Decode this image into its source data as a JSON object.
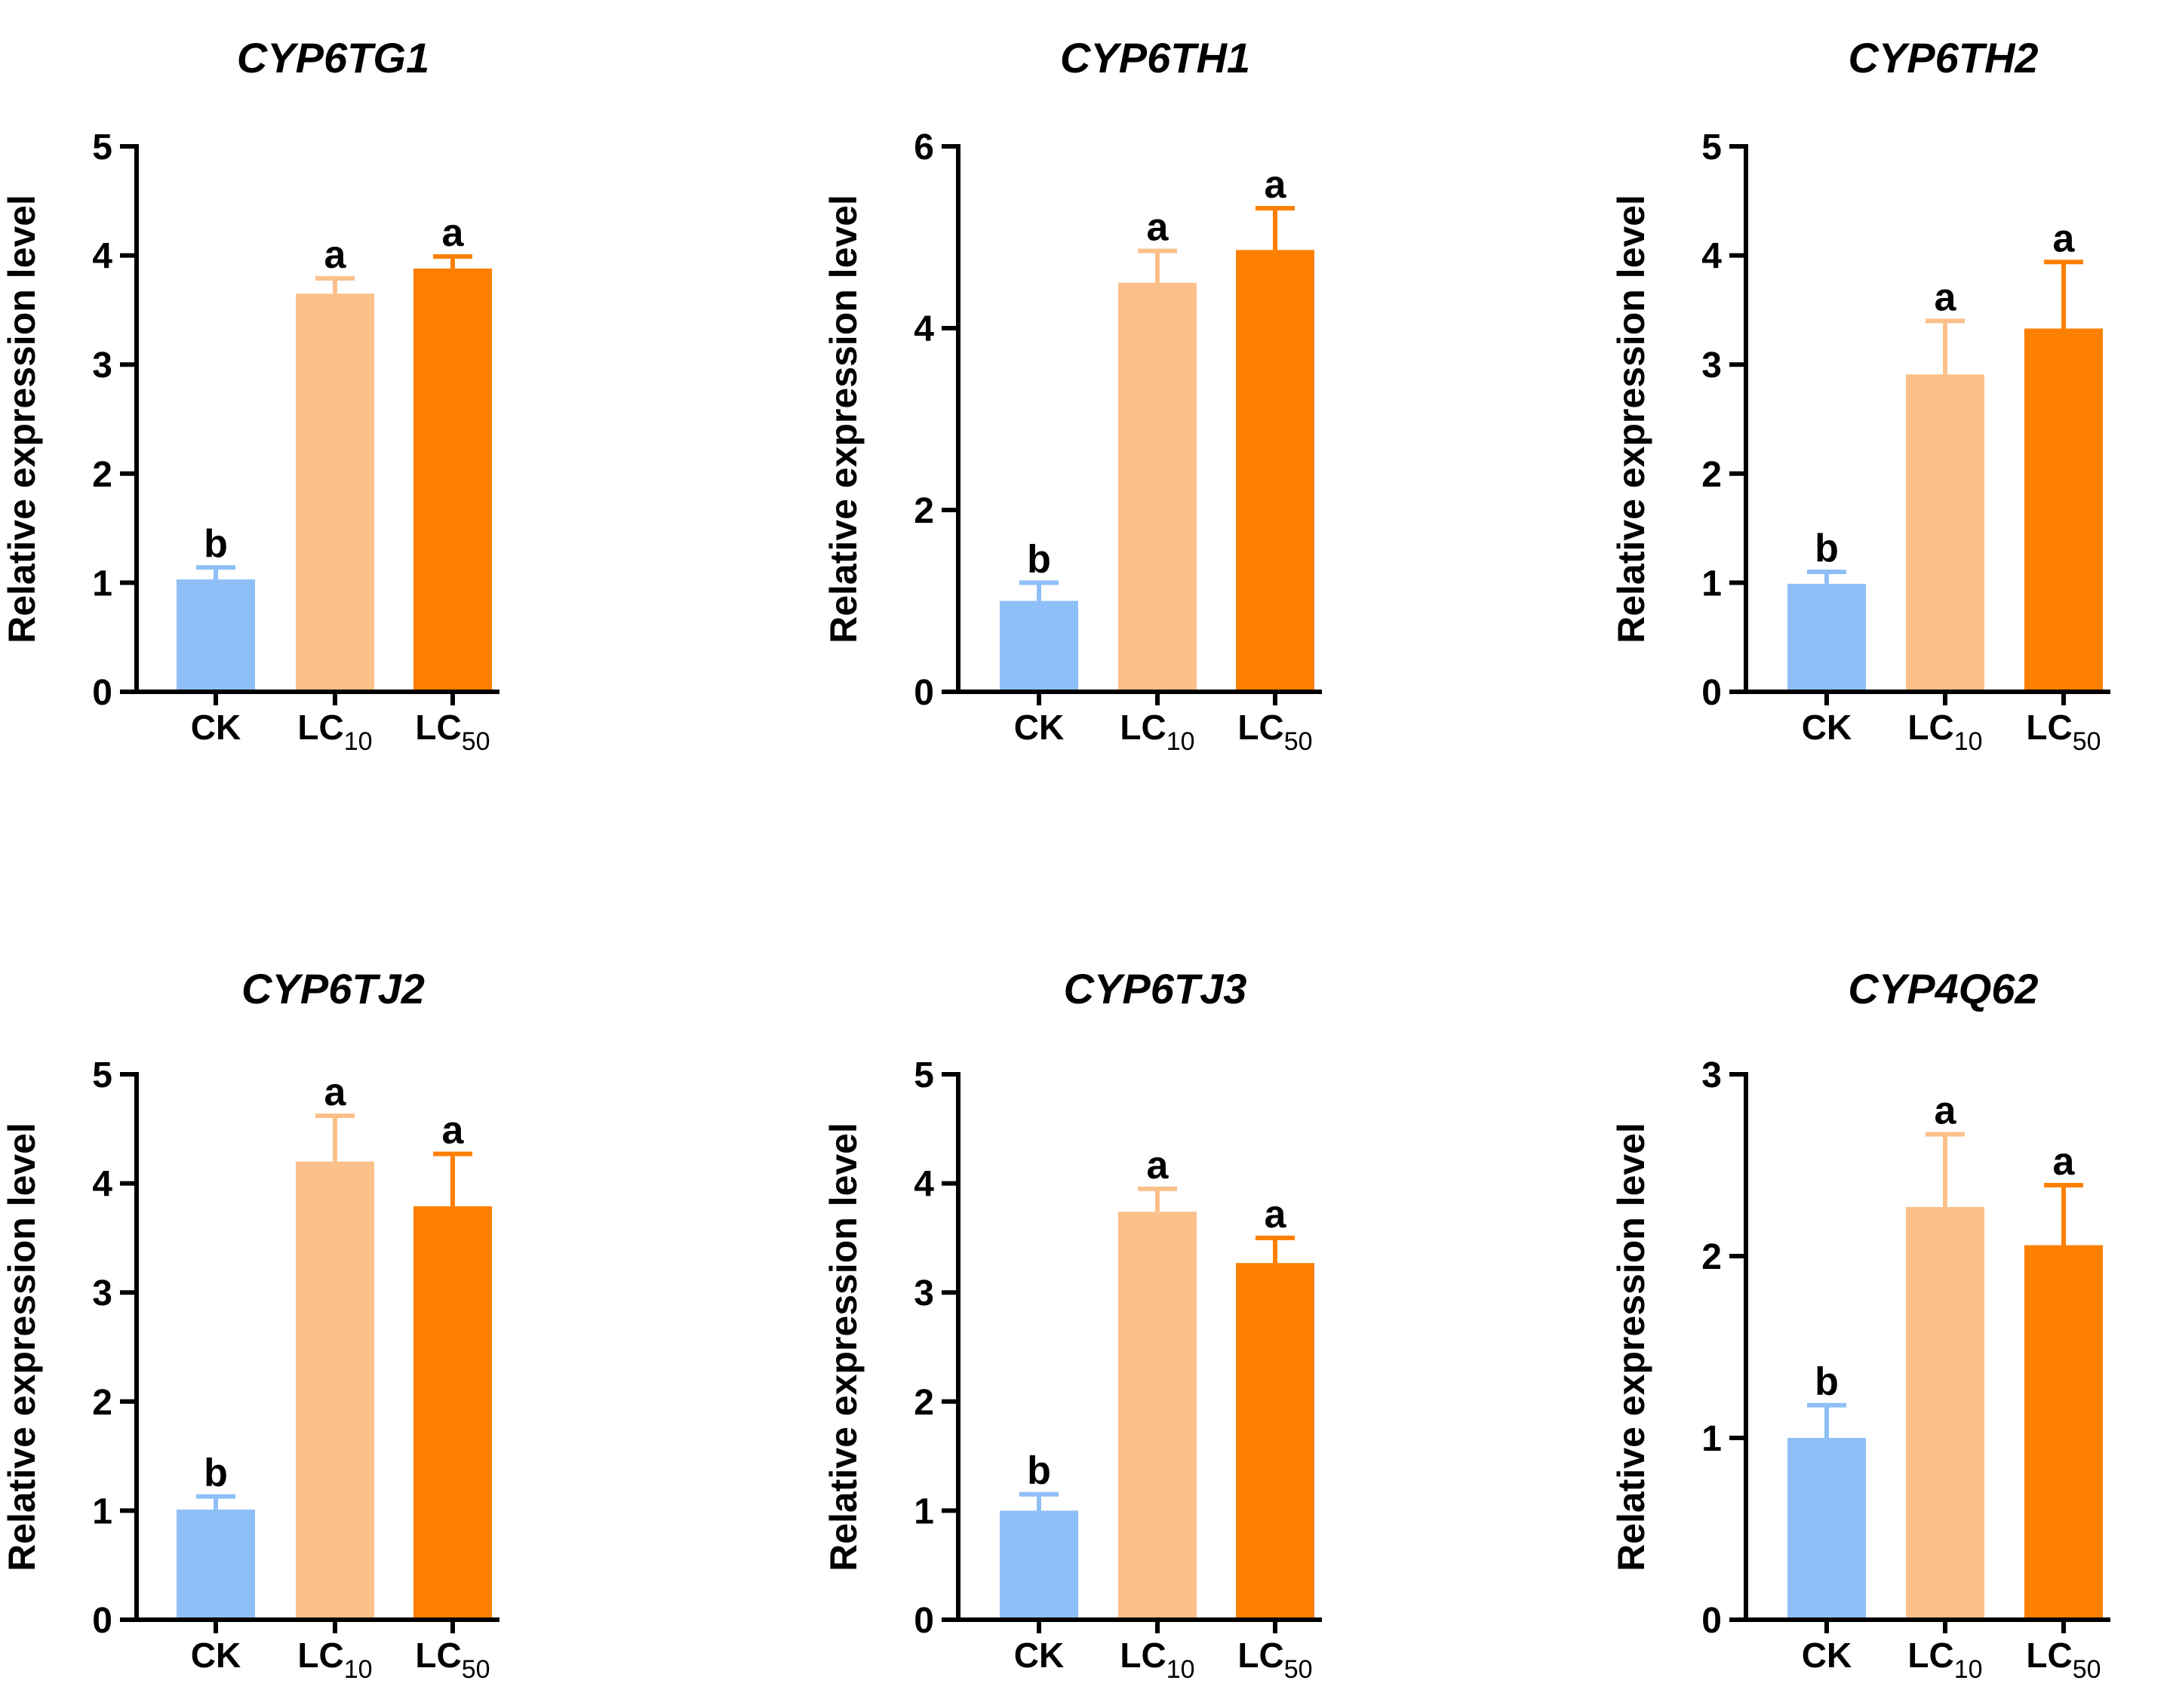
{
  "chart_data": [
    {
      "type": "bar",
      "title": "CYP6TG1",
      "ylabel": "Relative expression level",
      "xlabel": "",
      "categories": [
        "CK",
        "LC10",
        "LC50"
      ],
      "category_parts": [
        {
          "main": "CK",
          "sub": ""
        },
        {
          "main": "LC",
          "sub": "10"
        },
        {
          "main": "LC",
          "sub": "50"
        }
      ],
      "values": [
        1.03,
        3.65,
        3.88
      ],
      "errors": [
        0.11,
        0.14,
        0.11
      ],
      "letters": [
        "b",
        "a",
        "a"
      ],
      "colors": [
        "#8fbff7",
        "#fcc08a",
        "#fd7f00"
      ],
      "ylim": [
        0,
        5
      ],
      "yticks": [
        0,
        1,
        2,
        3,
        4,
        5
      ]
    },
    {
      "type": "bar",
      "title": "CYP6TH1",
      "ylabel": "Relative expression level",
      "xlabel": "",
      "categories": [
        "CK",
        "LC10",
        "LC50"
      ],
      "category_parts": [
        {
          "main": "CK",
          "sub": ""
        },
        {
          "main": "LC",
          "sub": "10"
        },
        {
          "main": "LC",
          "sub": "50"
        }
      ],
      "values": [
        1.0,
        4.5,
        4.86
      ],
      "errors": [
        0.2,
        0.35,
        0.46
      ],
      "letters": [
        "b",
        "a",
        "a"
      ],
      "colors": [
        "#8fbff7",
        "#fcc08a",
        "#fd7f00"
      ],
      "ylim": [
        0,
        6
      ],
      "yticks": [
        0,
        2,
        4,
        6
      ]
    },
    {
      "type": "bar",
      "title": "CYP6TH2",
      "ylabel": "Relative expression level",
      "xlabel": "",
      "categories": [
        "CK",
        "LC10",
        "LC50"
      ],
      "category_parts": [
        {
          "main": "CK",
          "sub": ""
        },
        {
          "main": "LC",
          "sub": "10"
        },
        {
          "main": "LC",
          "sub": "50"
        }
      ],
      "values": [
        0.99,
        2.91,
        3.33
      ],
      "errors": [
        0.11,
        0.49,
        0.61
      ],
      "letters": [
        "b",
        "a",
        "a"
      ],
      "colors": [
        "#8fbff7",
        "#fcc08a",
        "#fd7f00"
      ],
      "ylim": [
        0,
        5
      ],
      "yticks": [
        0,
        1,
        2,
        3,
        4,
        5
      ]
    },
    {
      "type": "bar",
      "title": "CYP6TJ2",
      "ylabel": "Relative expression level",
      "xlabel": "",
      "categories": [
        "CK",
        "LC10",
        "LC50"
      ],
      "category_parts": [
        {
          "main": "CK",
          "sub": ""
        },
        {
          "main": "LC",
          "sub": "10"
        },
        {
          "main": "LC",
          "sub": "50"
        }
      ],
      "values": [
        1.01,
        4.2,
        3.79
      ],
      "errors": [
        0.12,
        0.42,
        0.48
      ],
      "letters": [
        "b",
        "a",
        "a"
      ],
      "colors": [
        "#8fbff7",
        "#fcc08a",
        "#fd7f00"
      ],
      "ylim": [
        0,
        5
      ],
      "yticks": [
        0,
        1,
        2,
        3,
        4,
        5
      ]
    },
    {
      "type": "bar",
      "title": "CYP6TJ3",
      "ylabel": "Relative expression level",
      "xlabel": "",
      "categories": [
        "CK",
        "LC10",
        "LC50"
      ],
      "category_parts": [
        {
          "main": "CK",
          "sub": ""
        },
        {
          "main": "LC",
          "sub": "10"
        },
        {
          "main": "LC",
          "sub": "50"
        }
      ],
      "values": [
        1.0,
        3.74,
        3.27
      ],
      "errors": [
        0.15,
        0.21,
        0.23
      ],
      "letters": [
        "b",
        "a",
        "a"
      ],
      "colors": [
        "#8fbff7",
        "#fcc08a",
        "#fd7f00"
      ],
      "ylim": [
        0,
        5
      ],
      "yticks": [
        0,
        1,
        2,
        3,
        4,
        5
      ]
    },
    {
      "type": "bar",
      "title": "CYP4Q62",
      "ylabel": "Relative expression level",
      "xlabel": "",
      "categories": [
        "CK",
        "LC10",
        "LC50"
      ],
      "category_parts": [
        {
          "main": "CK",
          "sub": ""
        },
        {
          "main": "LC",
          "sub": "10"
        },
        {
          "main": "LC",
          "sub": "50"
        }
      ],
      "values": [
        1.0,
        2.27,
        2.06
      ],
      "errors": [
        0.18,
        0.4,
        0.33
      ],
      "letters": [
        "b",
        "a",
        "a"
      ],
      "colors": [
        "#8fbff7",
        "#fcc08a",
        "#fd7f00"
      ],
      "ylim": [
        0,
        3
      ],
      "yticks": [
        0,
        1,
        2,
        3
      ]
    }
  ]
}
